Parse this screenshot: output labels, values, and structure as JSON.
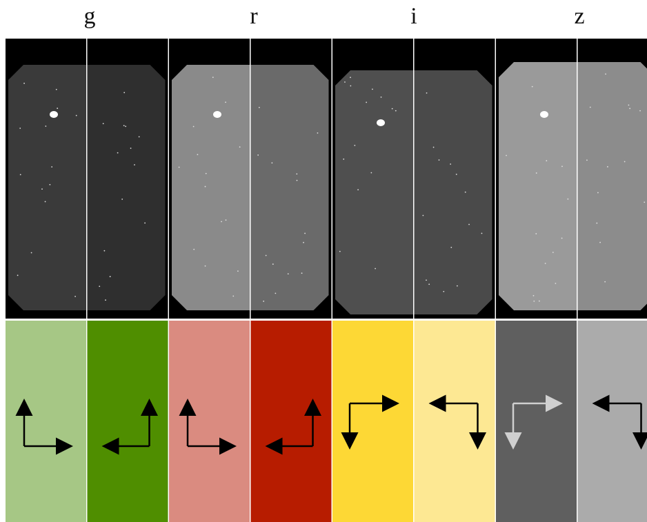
{
  "bands": [
    {
      "label": "g",
      "panels": [
        {
          "side": "left",
          "image_tone": "#3a3a3a",
          "swatch": "#a6c785",
          "arrow_color": "#000000",
          "orientation": "up-right"
        },
        {
          "side": "right",
          "image_tone": "#2f2f2f",
          "swatch": "#4f8e00",
          "arrow_color": "#000000",
          "orientation": "up-left"
        }
      ]
    },
    {
      "label": "r",
      "panels": [
        {
          "side": "left",
          "image_tone": "#8a8a8a",
          "swatch": "#da8b80",
          "arrow_color": "#000000",
          "orientation": "up-right"
        },
        {
          "side": "right",
          "image_tone": "#6a6a6a",
          "swatch": "#b71c00",
          "arrow_color": "#000000",
          "orientation": "up-left"
        }
      ]
    },
    {
      "label": "i",
      "panels": [
        {
          "side": "left",
          "image_tone": "#4f4f4f",
          "swatch": "#fdd835",
          "arrow_color": "#000000",
          "orientation": "down-right"
        },
        {
          "side": "right",
          "image_tone": "#4a4a4a",
          "swatch": "#fde893",
          "arrow_color": "#000000",
          "orientation": "down-left"
        }
      ]
    },
    {
      "label": "z",
      "panels": [
        {
          "side": "left",
          "image_tone": "#9a9a9a",
          "swatch": "#5f5f5f",
          "arrow_color": "#d0d0d0",
          "orientation": "down-right"
        },
        {
          "side": "right",
          "image_tone": "#8c8c8c",
          "swatch": "#ababab",
          "arrow_color": "#000000",
          "orientation": "down-left"
        }
      ]
    }
  ]
}
